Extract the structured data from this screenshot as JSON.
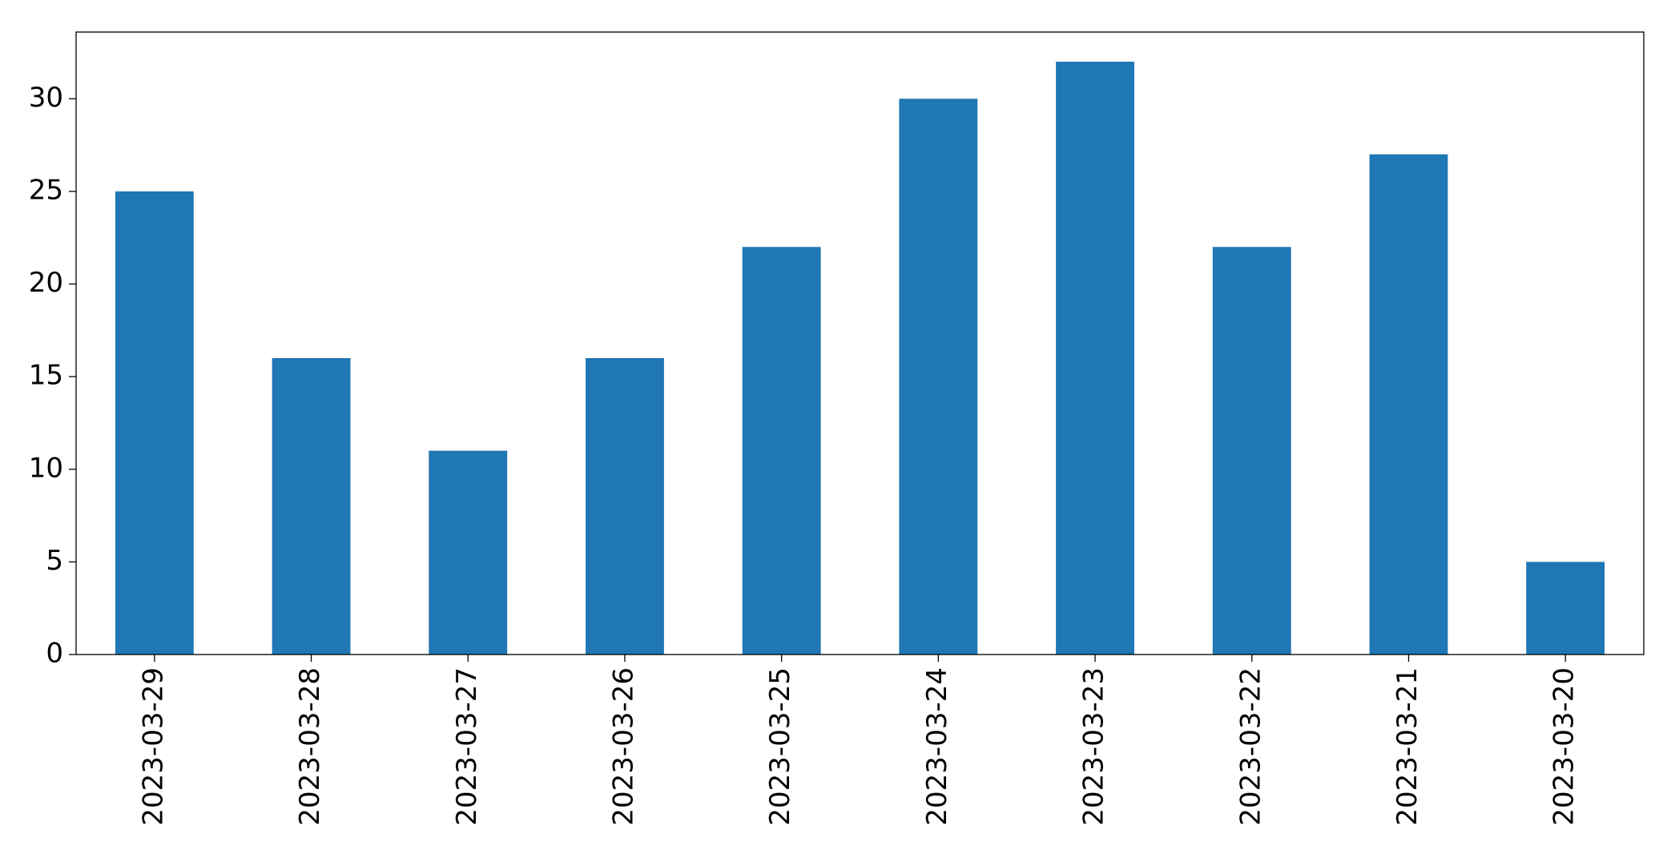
{
  "chart_data": {
    "type": "bar",
    "categories": [
      "2023-03-29",
      "2023-03-28",
      "2023-03-27",
      "2023-03-26",
      "2023-03-25",
      "2023-03-24",
      "2023-03-23",
      "2023-03-22",
      "2023-03-21",
      "2023-03-20"
    ],
    "values": [
      25,
      16,
      11,
      16,
      22,
      30,
      32,
      22,
      27,
      5
    ],
    "color": "#1f77b4",
    "ylim": [
      0,
      33.6
    ],
    "yticks": [
      0,
      5,
      10,
      15,
      20,
      25,
      30
    ],
    "grid": false
  }
}
